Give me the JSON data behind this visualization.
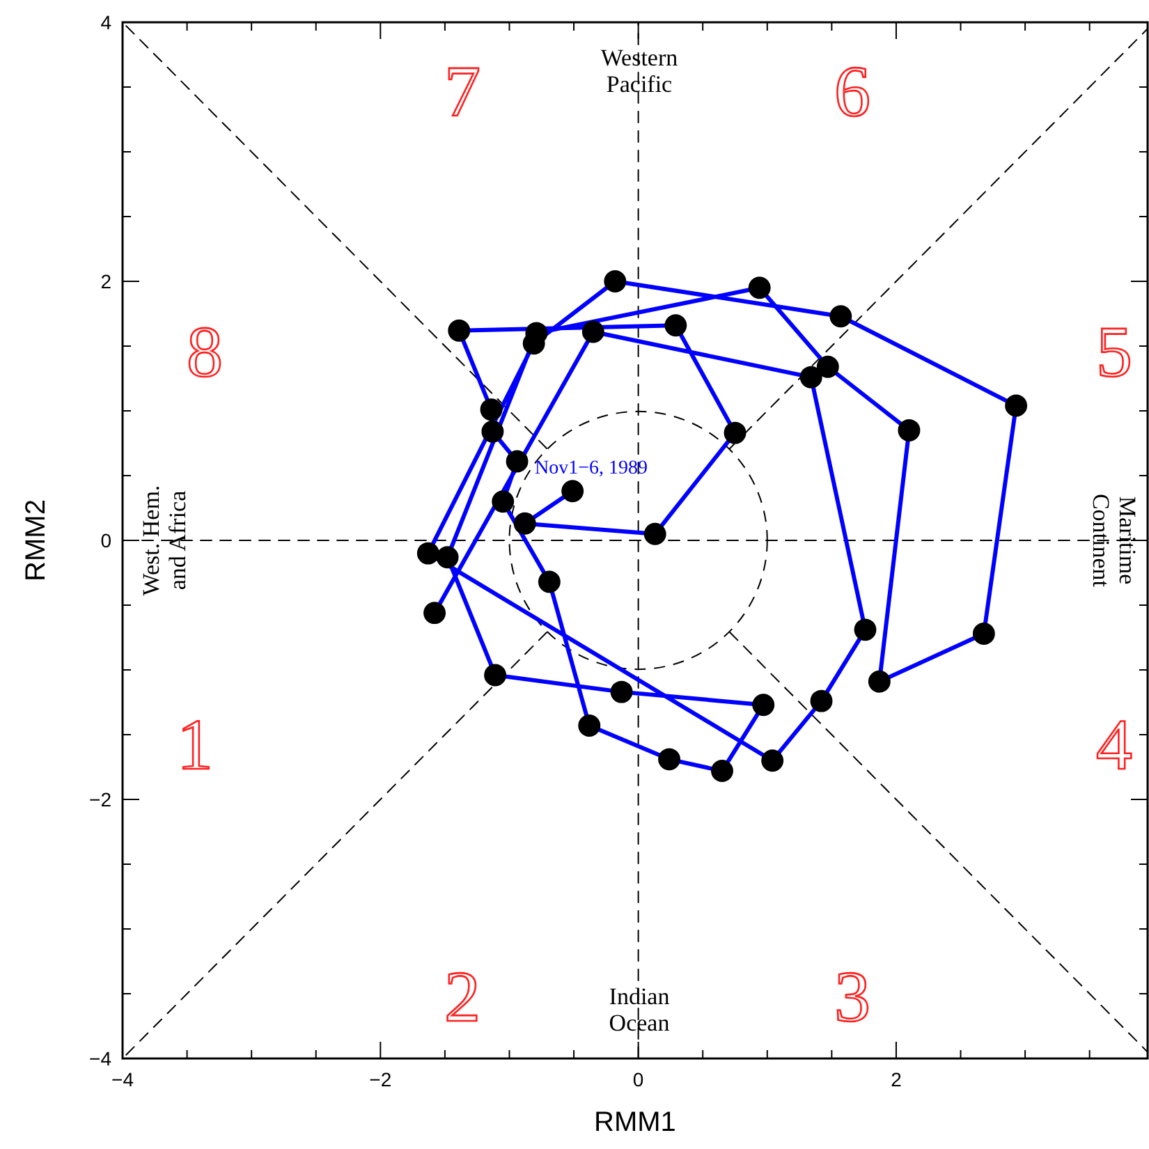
{
  "chart_data": {
    "type": "line",
    "xlabel": "RMM1",
    "ylabel": "RMM2",
    "xlim": [
      -4,
      3.95
    ],
    "ylim": [
      -4,
      4
    ],
    "xticks": [
      -4,
      {
        "value": -3.5,
        "label": null
      },
      {
        "value": -3,
        "label": null
      },
      {
        "value": -2.5,
        "label": null
      },
      -2,
      {
        "value": -1.5,
        "label": null
      },
      {
        "value": -1,
        "label": null
      },
      {
        "value": -0.5,
        "label": null
      },
      0,
      {
        "value": 0.5,
        "label": null
      },
      {
        "value": 1,
        "label": null
      },
      {
        "value": 1.5,
        "label": null
      },
      2,
      {
        "value": 2.5,
        "label": null
      },
      {
        "value": 3,
        "label": null
      },
      {
        "value": 3.5,
        "label": null
      }
    ],
    "yticks": [
      -4,
      {
        "value": -3.5,
        "label": null
      },
      {
        "value": -3,
        "label": null
      },
      {
        "value": -2.5,
        "label": null
      },
      -2,
      {
        "value": -1.5,
        "label": null
      },
      {
        "value": -1,
        "label": null
      },
      {
        "value": -0.5,
        "label": null
      },
      0,
      {
        "value": 0.5,
        "label": null
      },
      {
        "value": 1,
        "label": null
      },
      {
        "value": 1.5,
        "label": null
      },
      2,
      {
        "value": 2.5,
        "label": null
      },
      {
        "value": 3,
        "label": null
      },
      {
        "value": 3.5,
        "label": null
      },
      4
    ],
    "marker": "circle",
    "line_style": "solid",
    "grid": false,
    "series": [
      {
        "color": "#000000",
        "line_style": "dashed",
        "marker": "none",
        "x": [
          0,
          0
        ],
        "values": [
          -4,
          4
        ]
      },
      {
        "color": "#000000",
        "line_style": "dashed",
        "marker": "none",
        "x": [
          -4,
          3.95
        ],
        "values": [
          0,
          0
        ]
      },
      {
        "color": "#000000",
        "line_style": "dashed",
        "marker": "none",
        "x": [
          0.71,
          3.95
        ],
        "values": [
          0.71,
          3.95
        ]
      },
      {
        "color": "#000000",
        "line_style": "dashed",
        "marker": "none",
        "x": [
          -0.71,
          -4
        ],
        "values": [
          0.71,
          4
        ]
      },
      {
        "color": "#000000",
        "line_style": "dashed",
        "marker": "none",
        "x": [
          -0.71,
          -4
        ],
        "values": [
          -0.71,
          -4
        ]
      },
      {
        "color": "#000000",
        "line_style": "dashed",
        "marker": "none",
        "x": [
          0.71,
          3.95
        ],
        "values": [
          -0.71,
          -3.95
        ]
      },
      {
        "color": "#0000ff",
        "x": [
          -1.58,
          -0.35,
          1.34,
          1.76,
          1.42,
          1.04,
          -1.63,
          -0.81,
          -0.18,
          1.57,
          2.93,
          2.68,
          1.87,
          2.1,
          1.47,
          0.94,
          -0.79,
          -1.48,
          -1.11,
          -0.13,
          0.97,
          0.65,
          0.24,
          -0.38,
          -0.69,
          -1.05,
          -0.94,
          -1.13,
          -1.14,
          -1.39,
          0.29,
          0.75,
          0.13,
          -0.88,
          -0.51
        ],
        "values": [
          -0.56,
          1.61,
          1.26,
          -0.69,
          -1.24,
          -1.7,
          -0.1,
          1.52,
          2.0,
          1.73,
          1.04,
          -0.72,
          -1.09,
          0.85,
          1.34,
          1.95,
          1.6,
          -0.13,
          -1.04,
          -1.17,
          -1.27,
          -1.78,
          -1.69,
          -1.43,
          -0.32,
          0.3,
          0.61,
          0.84,
          1.01,
          1.62,
          1.66,
          0.83,
          0.05,
          0.13,
          0.38
        ]
      }
    ],
    "annotations": [
      "Nov1−6, 1989",
      "1",
      "2",
      "3",
      "4",
      "5",
      "6",
      "7",
      "8",
      "Western\nPacific",
      "Indian\nOcean",
      "West. Hem.\nand Africa",
      "Maritime\nContinent"
    ]
  }
}
